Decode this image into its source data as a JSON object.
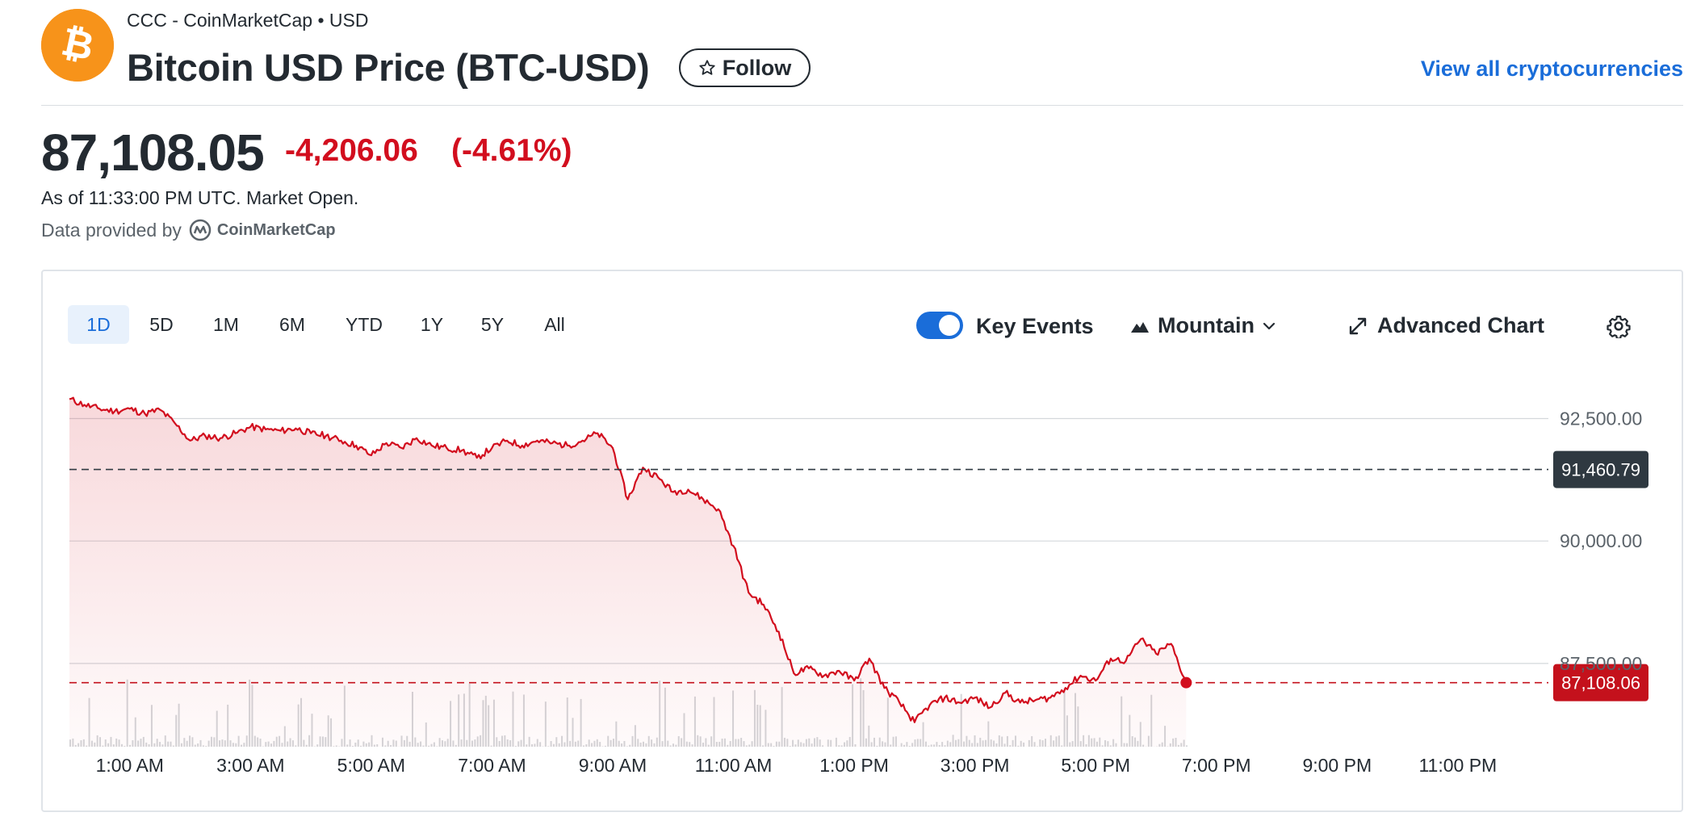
{
  "header": {
    "breadcrumb": "CCC - CoinMarketCap • USD",
    "title": "Bitcoin USD Price (BTC-USD)",
    "follow_label": "Follow",
    "view_all_label": "View all cryptocurrencies"
  },
  "quote": {
    "price": "87,108.05",
    "change": "-4,206.06",
    "change_pct": "(-4.61%)",
    "as_of": "As of 11:33:00 PM UTC. Market Open.",
    "provided_by_label": "Data provided by",
    "provider_name": "CoinMarketCap"
  },
  "chart_controls": {
    "ranges": [
      "1D",
      "5D",
      "1M",
      "6M",
      "YTD",
      "1Y",
      "5Y",
      "All"
    ],
    "active_range": "1D",
    "key_events_label": "Key Events",
    "key_events_on": true,
    "chart_type_label": "Mountain",
    "advanced_chart_label": "Advanced Chart"
  },
  "colors": {
    "down": "#d20e1e",
    "accent": "#1a6dd9",
    "bitcoin": "#f7931a"
  },
  "chart_data": {
    "type": "area",
    "y_tick_labels": [
      "92,500.00",
      "90,000.00",
      "87,500.00"
    ],
    "y_ticks": [
      92500,
      90000,
      87500
    ],
    "ylim": [
      85800,
      93300
    ],
    "x_tick_labels": [
      "1:00 AM",
      "3:00 AM",
      "5:00 AM",
      "7:00 AM",
      "9:00 AM",
      "11:00 AM",
      "1:00 PM",
      "3:00 PM",
      "5:00 PM",
      "7:00 PM",
      "9:00 PM",
      "11:00 PM"
    ],
    "x_ticks": [
      1,
      3,
      5,
      7,
      9,
      11,
      13,
      15,
      17,
      19,
      21,
      23
    ],
    "xlim": [
      0,
      24.5
    ],
    "previous_close": 91460.79,
    "previous_close_label": "91,460.79",
    "last_price": 87108.06,
    "last_price_label": "87,108.06",
    "series": [
      {
        "x": [
          0.0,
          0.25,
          0.5,
          0.75,
          1.0,
          1.25,
          1.5,
          1.75,
          2.0,
          2.25,
          2.5,
          2.75,
          3.0,
          3.25,
          3.5,
          3.75,
          4.0,
          4.25,
          4.5,
          4.75,
          5.0,
          5.25,
          5.5,
          5.75,
          6.0,
          6.25,
          6.5,
          6.75,
          7.0,
          7.25,
          7.5,
          7.75,
          8.0,
          8.25,
          8.5,
          8.75,
          9.0,
          9.25,
          9.5,
          9.75,
          10.0,
          10.25,
          10.5,
          10.75,
          11.0,
          11.25,
          11.5,
          11.75,
          12.0,
          12.25,
          12.5,
          12.75,
          13.0,
          13.25,
          13.5,
          13.75,
          14.0,
          14.25,
          14.5,
          14.75,
          15.0,
          15.25,
          15.5,
          15.75,
          16.0,
          16.25,
          16.5,
          16.75,
          17.0,
          17.25,
          17.5,
          17.75,
          18.0,
          18.25,
          18.5
        ],
        "values": [
          92900,
          92780,
          92700,
          92650,
          92700,
          92600,
          92680,
          92400,
          92050,
          92150,
          92100,
          92200,
          92330,
          92280,
          92250,
          92300,
          92200,
          92150,
          92050,
          91950,
          91750,
          92000,
          91900,
          92100,
          91950,
          91900,
          91850,
          91700,
          91900,
          92050,
          91950,
          92050,
          92000,
          91950,
          92050,
          92200,
          91900,
          90850,
          91500,
          91300,
          91000,
          91050,
          90850,
          90650,
          89900,
          88950,
          88700,
          88150,
          87300,
          87400,
          87250,
          87350,
          87150,
          87600,
          87000,
          86700,
          86300,
          86650,
          86800,
          86700,
          86800,
          86600,
          86900,
          86700,
          86750,
          86800,
          87000,
          87250,
          87150,
          87600,
          87550,
          88000,
          87700,
          87900,
          87100
        ]
      }
    ],
    "grid": true
  }
}
